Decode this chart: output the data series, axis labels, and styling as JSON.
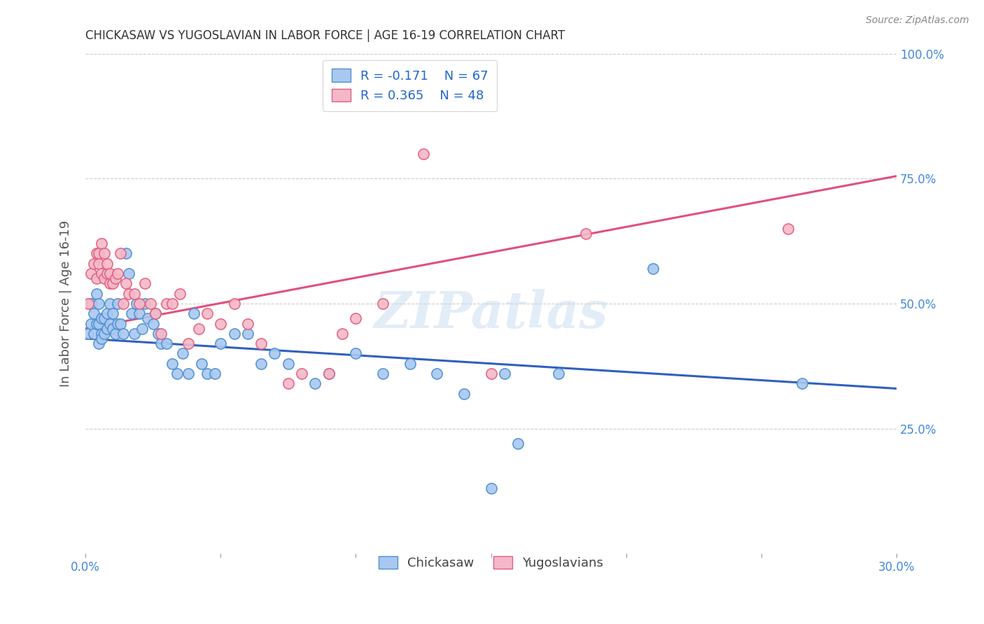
{
  "title": "CHICKASAW VS YUGOSLAVIAN IN LABOR FORCE | AGE 16-19 CORRELATION CHART",
  "source": "Source: ZipAtlas.com",
  "ylabel_label": "In Labor Force | Age 16-19",
  "xlim": [
    0.0,
    0.3
  ],
  "ylim": [
    0.0,
    1.0
  ],
  "xtick_positions": [
    0.0,
    0.05,
    0.1,
    0.15,
    0.2,
    0.25,
    0.3
  ],
  "xtick_labels": [
    "0.0%",
    "",
    "",
    "",
    "",
    "",
    "30.0%"
  ],
  "ytick_positions": [
    0.0,
    0.25,
    0.5,
    0.75,
    1.0
  ],
  "ytick_labels_right": [
    "",
    "25.0%",
    "50.0%",
    "75.0%",
    "100.0%"
  ],
  "chickasaw_color": "#A8C8F0",
  "chickasaw_edge_color": "#5090D0",
  "yugoslavian_color": "#F5B8C8",
  "yugoslavian_edge_color": "#E06080",
  "chickasaw_line_color": "#3060C0",
  "yugoslavian_line_color": "#E05080",
  "legend_R_color": "#2060C0",
  "watermark": "ZIPatlas",
  "chickasaw_trend_x": [
    0.0,
    0.3
  ],
  "chickasaw_trend_y": [
    0.43,
    0.33
  ],
  "yugoslavian_trend_x": [
    0.0,
    0.3
  ],
  "yugoslavian_trend_y": [
    0.45,
    0.755
  ],
  "chickasaw_x": [
    0.001,
    0.002,
    0.002,
    0.003,
    0.003,
    0.004,
    0.004,
    0.005,
    0.005,
    0.005,
    0.006,
    0.006,
    0.006,
    0.007,
    0.007,
    0.008,
    0.008,
    0.009,
    0.009,
    0.01,
    0.01,
    0.011,
    0.012,
    0.012,
    0.013,
    0.014,
    0.015,
    0.016,
    0.017,
    0.018,
    0.019,
    0.02,
    0.021,
    0.022,
    0.023,
    0.025,
    0.026,
    0.027,
    0.028,
    0.03,
    0.032,
    0.034,
    0.036,
    0.038,
    0.04,
    0.043,
    0.045,
    0.048,
    0.05,
    0.055,
    0.06,
    0.065,
    0.07,
    0.075,
    0.085,
    0.09,
    0.1,
    0.11,
    0.12,
    0.13,
    0.14,
    0.15,
    0.155,
    0.16,
    0.175,
    0.21,
    0.265
  ],
  "chickasaw_y": [
    0.44,
    0.46,
    0.5,
    0.44,
    0.48,
    0.46,
    0.52,
    0.42,
    0.46,
    0.5,
    0.44,
    0.47,
    0.43,
    0.47,
    0.44,
    0.45,
    0.48,
    0.46,
    0.5,
    0.45,
    0.48,
    0.44,
    0.46,
    0.5,
    0.46,
    0.44,
    0.6,
    0.56,
    0.48,
    0.44,
    0.5,
    0.48,
    0.45,
    0.5,
    0.47,
    0.46,
    0.48,
    0.44,
    0.42,
    0.42,
    0.38,
    0.36,
    0.4,
    0.36,
    0.48,
    0.38,
    0.36,
    0.36,
    0.42,
    0.44,
    0.44,
    0.38,
    0.4,
    0.38,
    0.34,
    0.36,
    0.4,
    0.36,
    0.38,
    0.36,
    0.32,
    0.13,
    0.36,
    0.22,
    0.36,
    0.57,
    0.34
  ],
  "yugoslavian_x": [
    0.001,
    0.002,
    0.003,
    0.004,
    0.004,
    0.005,
    0.005,
    0.006,
    0.006,
    0.007,
    0.007,
    0.008,
    0.008,
    0.009,
    0.009,
    0.01,
    0.011,
    0.012,
    0.013,
    0.014,
    0.015,
    0.016,
    0.018,
    0.02,
    0.022,
    0.024,
    0.026,
    0.028,
    0.03,
    0.032,
    0.035,
    0.038,
    0.042,
    0.045,
    0.05,
    0.055,
    0.06,
    0.065,
    0.075,
    0.08,
    0.09,
    0.095,
    0.1,
    0.11,
    0.125,
    0.15,
    0.185,
    0.26
  ],
  "yugoslavian_y": [
    0.5,
    0.56,
    0.58,
    0.55,
    0.6,
    0.58,
    0.6,
    0.56,
    0.62,
    0.55,
    0.6,
    0.56,
    0.58,
    0.54,
    0.56,
    0.54,
    0.55,
    0.56,
    0.6,
    0.5,
    0.54,
    0.52,
    0.52,
    0.5,
    0.54,
    0.5,
    0.48,
    0.44,
    0.5,
    0.5,
    0.52,
    0.42,
    0.45,
    0.48,
    0.46,
    0.5,
    0.46,
    0.42,
    0.34,
    0.36,
    0.36,
    0.44,
    0.47,
    0.5,
    0.8,
    0.36,
    0.64,
    0.65
  ]
}
